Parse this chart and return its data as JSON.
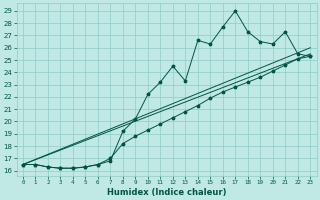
{
  "xlabel": "Humidex (Indice chaleur)",
  "bg_color": "#c0e8e4",
  "grid_color": "#90ccc8",
  "line_color": "#005544",
  "xlim_min": -0.5,
  "xlim_max": 23.5,
  "ylim_min": 15.6,
  "ylim_max": 29.6,
  "xticks": [
    0,
    1,
    2,
    3,
    4,
    5,
    6,
    7,
    8,
    9,
    10,
    11,
    12,
    13,
    14,
    15,
    16,
    17,
    18,
    19,
    20,
    21,
    22,
    23
  ],
  "yticks": [
    16,
    17,
    18,
    19,
    20,
    21,
    22,
    23,
    24,
    25,
    26,
    27,
    28,
    29
  ],
  "jagged_x": [
    0,
    1,
    2,
    3,
    4,
    5,
    6,
    7,
    8,
    9,
    10,
    11,
    12,
    13,
    14,
    15,
    16,
    17,
    18,
    19,
    20,
    21,
    22,
    23
  ],
  "jagged_y": [
    16.5,
    16.5,
    16.3,
    16.2,
    16.2,
    16.3,
    16.5,
    16.8,
    19.2,
    20.2,
    22.2,
    23.2,
    24.5,
    23.3,
    26.6,
    26.3,
    27.7,
    29.0,
    27.3,
    26.5,
    26.3,
    27.3,
    25.5,
    25.3
  ],
  "smooth_x": [
    0,
    1,
    2,
    3,
    4,
    5,
    6,
    7,
    8,
    9,
    10,
    11,
    12,
    13,
    14,
    15,
    16,
    17,
    18,
    19,
    20,
    21,
    22,
    23
  ],
  "smooth_y": [
    16.5,
    16.5,
    16.3,
    16.2,
    16.2,
    16.3,
    16.5,
    17.0,
    18.2,
    18.8,
    19.3,
    19.8,
    20.3,
    20.8,
    21.3,
    21.9,
    22.4,
    22.8,
    23.2,
    23.6,
    24.1,
    24.6,
    25.1,
    25.3
  ],
  "line1_x": [
    0,
    23
  ],
  "line1_y": [
    16.5,
    25.5
  ],
  "line2_x": [
    0,
    23
  ],
  "line2_y": [
    16.5,
    26.0
  ]
}
